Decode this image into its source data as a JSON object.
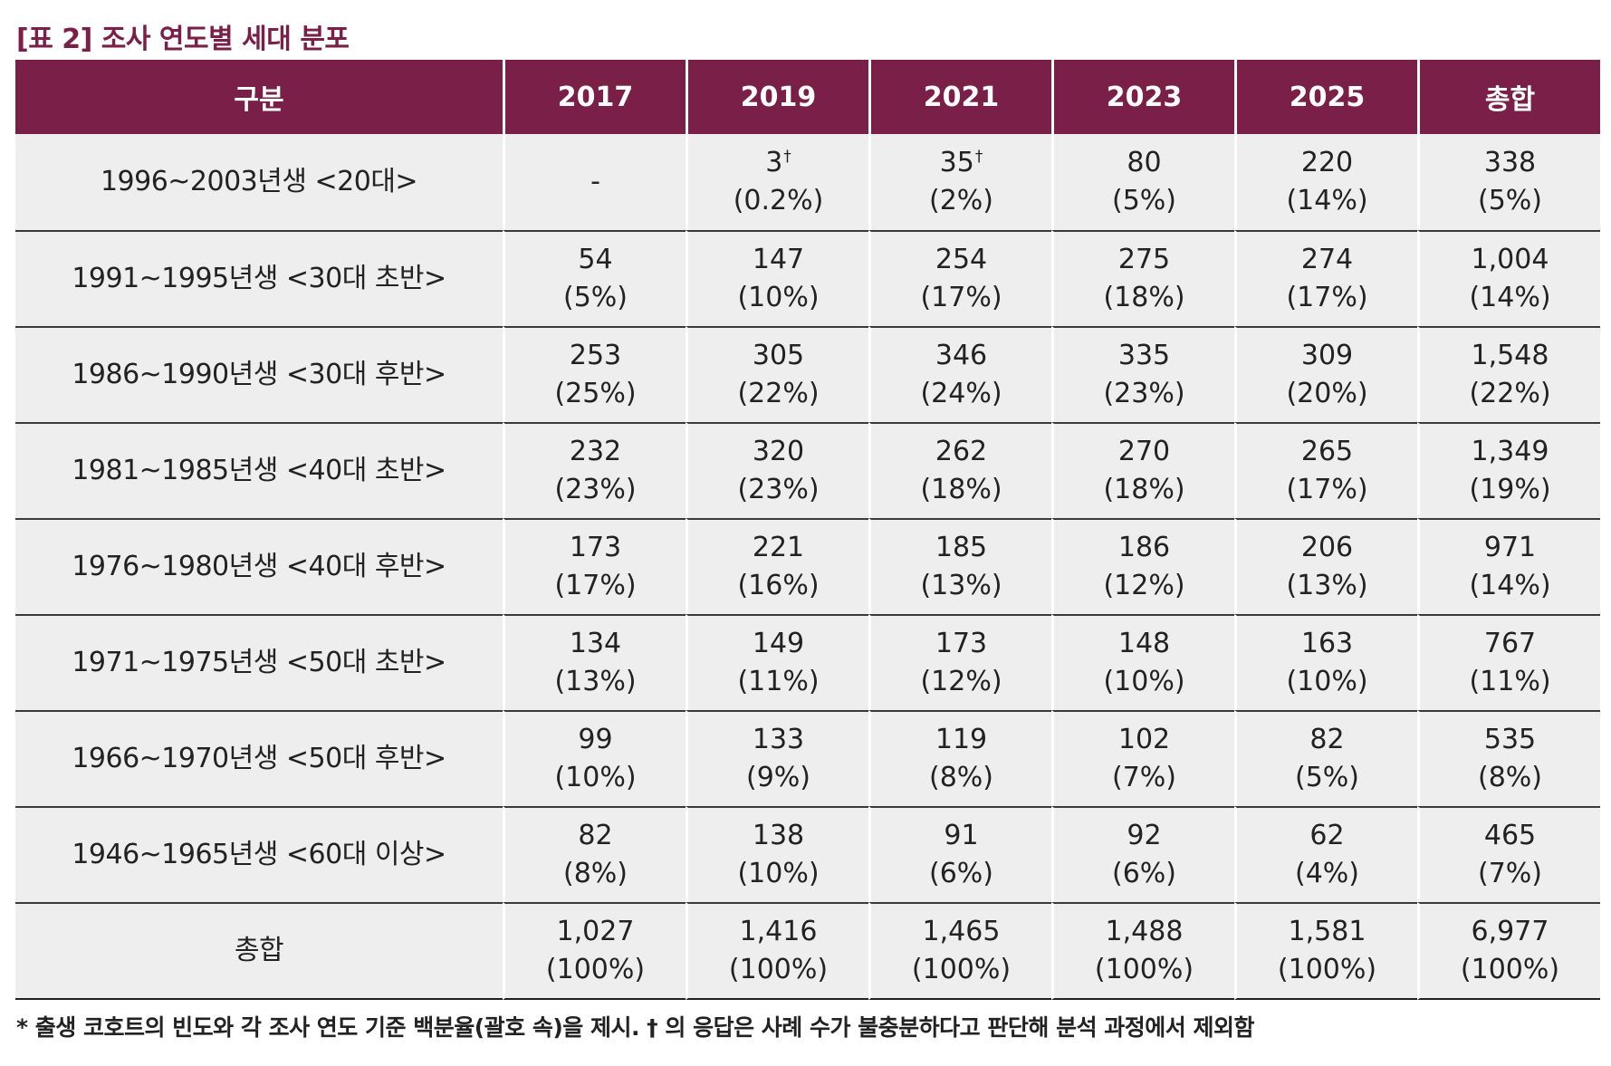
{
  "title": "[표 2] 조사 연도별 세대 분포",
  "header": [
    "구분",
    "2017",
    "2019",
    "2021",
    "2023",
    "2025",
    "총합"
  ],
  "rows": [
    {
      "label": "1996~2003년생 <20대>",
      "cells": [
        {
          "count": "-",
          "pct": "",
          "dagger": ""
        },
        {
          "count": "3",
          "pct": "(0.2%)",
          "dagger": "†"
        },
        {
          "count": "35",
          "pct": "(2%)",
          "dagger": "†"
        },
        {
          "count": "80",
          "pct": "(5%)",
          "dagger": ""
        },
        {
          "count": "220",
          "pct": "(14%)",
          "dagger": ""
        },
        {
          "count": "338",
          "pct": "(5%)",
          "dagger": ""
        }
      ]
    },
    {
      "label": "1991~1995년생 <30대 초반>",
      "cells": [
        {
          "count": "54",
          "pct": "(5%)",
          "dagger": ""
        },
        {
          "count": "147",
          "pct": "(10%)",
          "dagger": ""
        },
        {
          "count": "254",
          "pct": "(17%)",
          "dagger": ""
        },
        {
          "count": "275",
          "pct": "(18%)",
          "dagger": ""
        },
        {
          "count": "274",
          "pct": "(17%)",
          "dagger": ""
        },
        {
          "count": "1,004",
          "pct": "(14%)",
          "dagger": ""
        }
      ]
    },
    {
      "label": "1986~1990년생 <30대 후반>",
      "cells": [
        {
          "count": "253",
          "pct": "(25%)",
          "dagger": ""
        },
        {
          "count": "305",
          "pct": "(22%)",
          "dagger": ""
        },
        {
          "count": "346",
          "pct": "(24%)",
          "dagger": ""
        },
        {
          "count": "335",
          "pct": "(23%)",
          "dagger": ""
        },
        {
          "count": "309",
          "pct": "(20%)",
          "dagger": ""
        },
        {
          "count": "1,548",
          "pct": "(22%)",
          "dagger": ""
        }
      ]
    },
    {
      "label": "1981~1985년생 <40대 초반>",
      "cells": [
        {
          "count": "232",
          "pct": "(23%)",
          "dagger": ""
        },
        {
          "count": "320",
          "pct": "(23%)",
          "dagger": ""
        },
        {
          "count": "262",
          "pct": "(18%)",
          "dagger": ""
        },
        {
          "count": "270",
          "pct": "(18%)",
          "dagger": ""
        },
        {
          "count": "265",
          "pct": "(17%)",
          "dagger": ""
        },
        {
          "count": "1,349",
          "pct": "(19%)",
          "dagger": ""
        }
      ]
    },
    {
      "label": "1976~1980년생 <40대 후반>",
      "cells": [
        {
          "count": "173",
          "pct": "(17%)",
          "dagger": ""
        },
        {
          "count": "221",
          "pct": "(16%)",
          "dagger": ""
        },
        {
          "count": "185",
          "pct": "(13%)",
          "dagger": ""
        },
        {
          "count": "186",
          "pct": "(12%)",
          "dagger": ""
        },
        {
          "count": "206",
          "pct": "(13%)",
          "dagger": ""
        },
        {
          "count": "971",
          "pct": "(14%)",
          "dagger": ""
        }
      ]
    },
    {
      "label": "1971~1975년생 <50대 초반>",
      "cells": [
        {
          "count": "134",
          "pct": "(13%)",
          "dagger": ""
        },
        {
          "count": "149",
          "pct": "(11%)",
          "dagger": ""
        },
        {
          "count": "173",
          "pct": "(12%)",
          "dagger": ""
        },
        {
          "count": "148",
          "pct": "(10%)",
          "dagger": ""
        },
        {
          "count": "163",
          "pct": "(10%)",
          "dagger": ""
        },
        {
          "count": "767",
          "pct": "(11%)",
          "dagger": ""
        }
      ]
    },
    {
      "label": "1966~1970년생 <50대 후반>",
      "cells": [
        {
          "count": "99",
          "pct": "(10%)",
          "dagger": ""
        },
        {
          "count": "133",
          "pct": "(9%)",
          "dagger": ""
        },
        {
          "count": "119",
          "pct": "(8%)",
          "dagger": ""
        },
        {
          "count": "102",
          "pct": "(7%)",
          "dagger": ""
        },
        {
          "count": "82",
          "pct": "(5%)",
          "dagger": ""
        },
        {
          "count": "535",
          "pct": "(8%)",
          "dagger": ""
        }
      ]
    },
    {
      "label": "1946~1965년생 <60대 이상>",
      "cells": [
        {
          "count": "82",
          "pct": "(8%)",
          "dagger": ""
        },
        {
          "count": "138",
          "pct": "(10%)",
          "dagger": ""
        },
        {
          "count": "91",
          "pct": "(6%)",
          "dagger": ""
        },
        {
          "count": "92",
          "pct": "(6%)",
          "dagger": ""
        },
        {
          "count": "62",
          "pct": "(4%)",
          "dagger": ""
        },
        {
          "count": "465",
          "pct": "(7%)",
          "dagger": ""
        }
      ]
    },
    {
      "label": "총합",
      "cells": [
        {
          "count": "1,027",
          "pct": "(100%)",
          "dagger": ""
        },
        {
          "count": "1,416",
          "pct": "(100%)",
          "dagger": ""
        },
        {
          "count": "1,465",
          "pct": "(100%)",
          "dagger": ""
        },
        {
          "count": "1,488",
          "pct": "(100%)",
          "dagger": ""
        },
        {
          "count": "1,581",
          "pct": "(100%)",
          "dagger": ""
        },
        {
          "count": "6,977",
          "pct": "(100%)",
          "dagger": ""
        }
      ]
    }
  ],
  "footnote": "* 출생 코호트의 빈도와 각 조사 연도 기준 백분율(괄호 속)을 제시.  † 의 응답은 사례 수가 불충분하다고 판단해 분석 과정에서 제외함",
  "colors": {
    "header_bg": "#7a2048",
    "title": "#7a2048",
    "cell_bg": "#eeeeee"
  }
}
